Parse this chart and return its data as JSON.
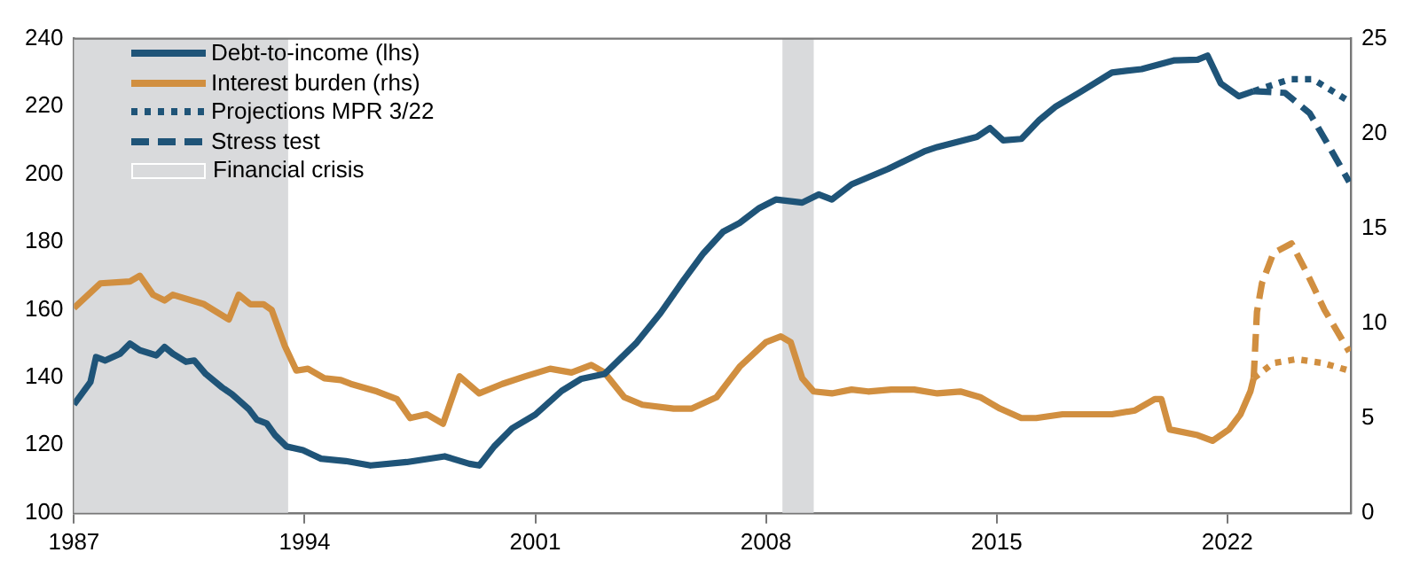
{
  "chart_data": {
    "type": "line",
    "xlim": [
      1987,
      2025.75
    ],
    "xticks": [
      1987,
      1994,
      2001,
      2008,
      2015,
      2022
    ],
    "ylim": [
      100,
      240
    ],
    "yticks": [
      100,
      120,
      140,
      160,
      180,
      200,
      220,
      240
    ],
    "y2lim": [
      0,
      25
    ],
    "y2ticks": [
      0,
      5,
      10,
      15,
      20,
      25
    ],
    "legend": "top left",
    "line_style": "solid",
    "series": [
      {
        "name": "Debt-to-income (lhs)",
        "color": "#1f5478",
        "x": [
          1987,
          1987.5,
          1987.67,
          1987.95,
          1988.4,
          1988.7,
          1989,
          1989.5,
          1989.75,
          1990,
          1990.4,
          1990.65,
          1991,
          1991.5,
          1991.8,
          1992.3,
          1992.55,
          1992.85,
          1993.1,
          1993.45,
          1993.95,
          1994.5,
          1995.25,
          1996,
          1997.1,
          1998.25,
          1999,
          1999.3,
          1999.75,
          2000.3,
          2001,
          2001.8,
          2002.4,
          2003.1,
          2004.05,
          2004.8,
          2005.5,
          2006.1,
          2006.7,
          2007.2,
          2007.8,
          2008.3,
          2009.1,
          2009.6,
          2010,
          2010.6,
          2011.7,
          2012.8,
          2013.2,
          2014.4,
          2014.8,
          2015.2,
          2015.75,
          2016.3,
          2016.8,
          2017.5,
          2018.5,
          2019.4,
          2020.4,
          2021.1,
          2021.4,
          2021.8,
          2022.35,
          2022.8
        ],
        "values": [
          132,
          138.6,
          146,
          145,
          147,
          150,
          148,
          146.5,
          149,
          147,
          144.6,
          145,
          141,
          137,
          135,
          130.7,
          127.5,
          126.4,
          123,
          119.6,
          118.5,
          116,
          115.3,
          114,
          115,
          116.7,
          114.5,
          114,
          119.6,
          125,
          129,
          136,
          139.6,
          141,
          150,
          159,
          168.7,
          176.6,
          183,
          185.6,
          190,
          192.5,
          191.6,
          194,
          192.5,
          197,
          201.5,
          206.7,
          208,
          211,
          213.6,
          210,
          210.4,
          216,
          220,
          224,
          230,
          231,
          233.6,
          233.8,
          235,
          226.8,
          223,
          224.5
        ]
      },
      {
        "name": "Interest burden (rhs)",
        "color": "#d18f40",
        "axis": "y2",
        "x": [
          1987,
          1987.8,
          1988.7,
          1989,
          1989.4,
          1989.75,
          1990,
          1990.95,
          1991.7,
          1992,
          1992.35,
          1992.75,
          1993,
          1993.4,
          1993.75,
          1994.1,
          1994.6,
          1995.1,
          1995.4,
          1996.2,
          1996.8,
          1997.2,
          1997.7,
          1998.2,
          1998.7,
          1999.3,
          2000,
          2000.7,
          2001.45,
          2002.1,
          2002.7,
          2003.1,
          2003.7,
          2004.25,
          2005.2,
          2005.75,
          2006.5,
          2007.2,
          2008,
          2008.45,
          2008.75,
          2009.1,
          2009.45,
          2010,
          2010.6,
          2011.1,
          2011.8,
          2012.5,
          2013.2,
          2013.9,
          2014.5,
          2015.1,
          2015.75,
          2016.2,
          2017,
          2018.5,
          2019.2,
          2019.8,
          2020,
          2020.25,
          2021.1,
          2021.55,
          2022.05,
          2022.4,
          2022.7,
          2022.8
        ],
        "values": [
          10.8,
          12.1,
          12.2,
          12.5,
          11.5,
          11.2,
          11.5,
          11,
          10.2,
          11.5,
          11,
          11,
          10.7,
          8.8,
          7.5,
          7.6,
          7.1,
          7,
          6.8,
          6.4,
          6,
          5,
          5.2,
          4.7,
          7.2,
          6.3,
          6.8,
          7.2,
          7.6,
          7.4,
          7.8,
          7.4,
          6.1,
          5.7,
          5.5,
          5.5,
          6.1,
          7.7,
          9,
          9.3,
          9,
          7.1,
          6.4,
          6.3,
          6.5,
          6.4,
          6.5,
          6.5,
          6.3,
          6.4,
          6.1,
          5.5,
          5,
          5,
          5.2,
          5.2,
          5.4,
          6,
          6,
          4.4,
          4.1,
          3.8,
          4.4,
          5.2,
          6.4,
          7.1
        ]
      },
      {
        "name": "Projections MPR 3/22",
        "color": "#1f5478",
        "line_style": "dotted",
        "x": [
          2022.8,
          2023.9,
          2024.6,
          2025.7
        ],
        "values": [
          224.5,
          228,
          228,
          221.5
        ]
      },
      {
        "color": "#d18f40",
        "line_style": "dotted",
        "axis": "y2",
        "x": [
          2022.8,
          2023.4,
          2024.1,
          2024.9,
          2025.7
        ],
        "values": [
          7.1,
          7.9,
          8.1,
          7.9,
          7.5
        ]
      },
      {
        "name": "Stress test",
        "color": "#1f5478",
        "line_style": "dashed",
        "x": [
          2022.8,
          2023.75,
          2024.5,
          2025.1,
          2025.7
        ],
        "values": [
          224.5,
          224,
          218,
          208,
          197.7
        ]
      },
      {
        "color": "#d18f40",
        "line_style": "dashed",
        "axis": "y2",
        "x": [
          2022.8,
          2022.9,
          2023.05,
          2023.4,
          2023.95,
          2024.4,
          2024.95,
          2025.7
        ],
        "values": [
          7.1,
          10.6,
          12.1,
          13.7,
          14.2,
          12.7,
          10.7,
          8.5
        ]
      }
    ],
    "bands": [
      {
        "axis": "x",
        "from": 1987,
        "to": 1993.5,
        "label": "Financial crisis",
        "color": "#d9dadc"
      },
      {
        "axis": "x",
        "from": 2008.5,
        "to": 2009.45,
        "color": "#d9dadc"
      }
    ]
  }
}
